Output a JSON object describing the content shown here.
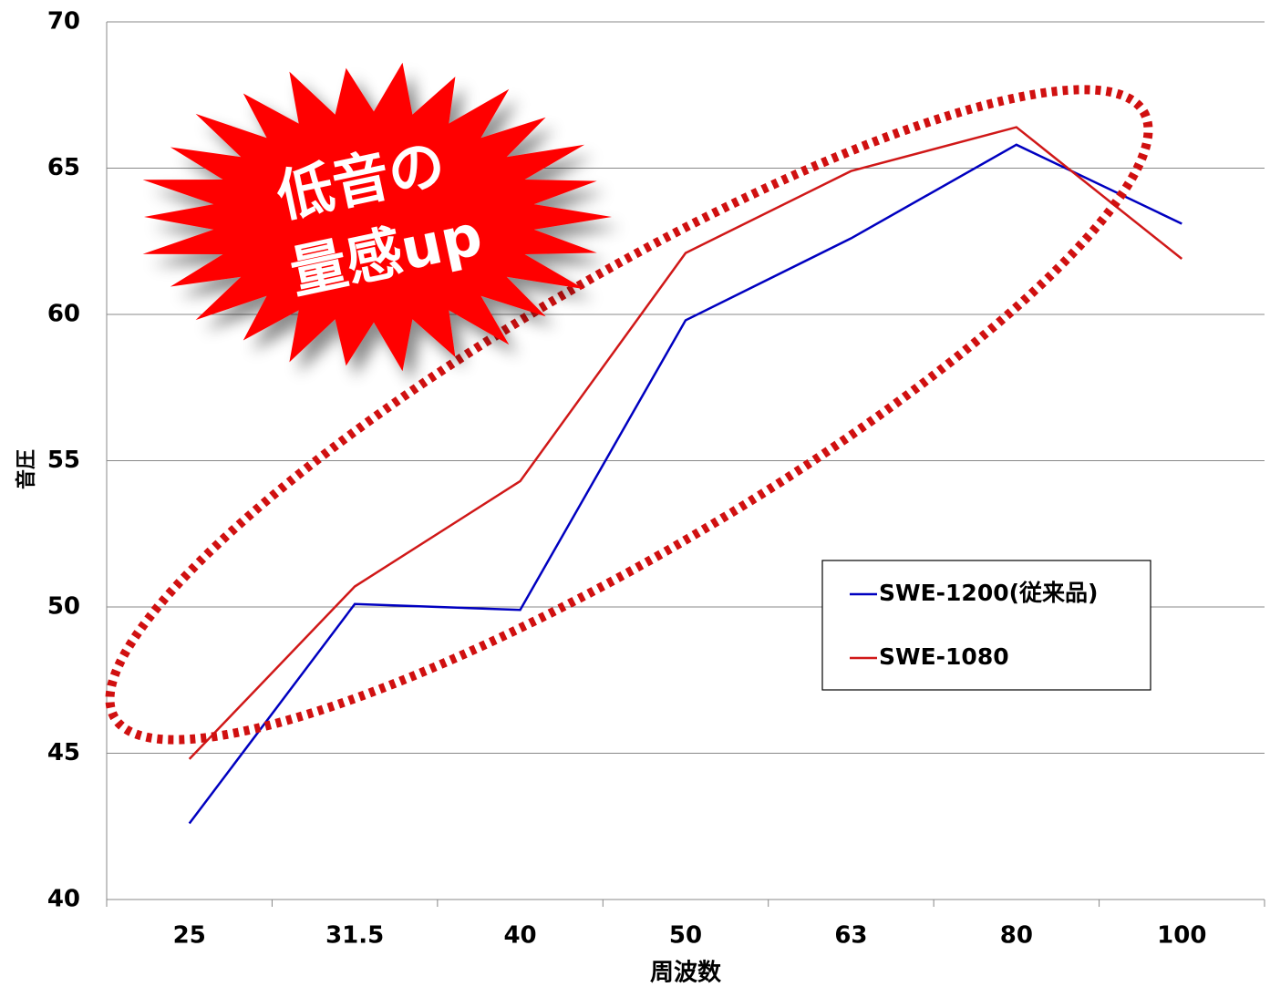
{
  "chart_data": {
    "type": "line",
    "x_label": "周波数",
    "y_label": "音圧",
    "annotation": [
      "低音の",
      "量感up"
    ],
    "categories": [
      "25",
      "31.5",
      "40",
      "50",
      "63",
      "80",
      "100"
    ],
    "series": [
      {
        "name": "SWE-1200(従来品)",
        "color": "#0000c0",
        "values": [
          42.6,
          50.1,
          49.9,
          59.8,
          62.6,
          65.8,
          63.1
        ]
      },
      {
        "name": "SWE-1080",
        "color": "#d01818",
        "values": [
          44.8,
          50.7,
          54.3,
          62.1,
          64.9,
          66.4,
          61.9
        ]
      }
    ],
    "ylim": [
      40,
      70
    ],
    "yticks": [
      40,
      45,
      50,
      55,
      60,
      65,
      70
    ],
    "grid": true,
    "legend": "right"
  }
}
